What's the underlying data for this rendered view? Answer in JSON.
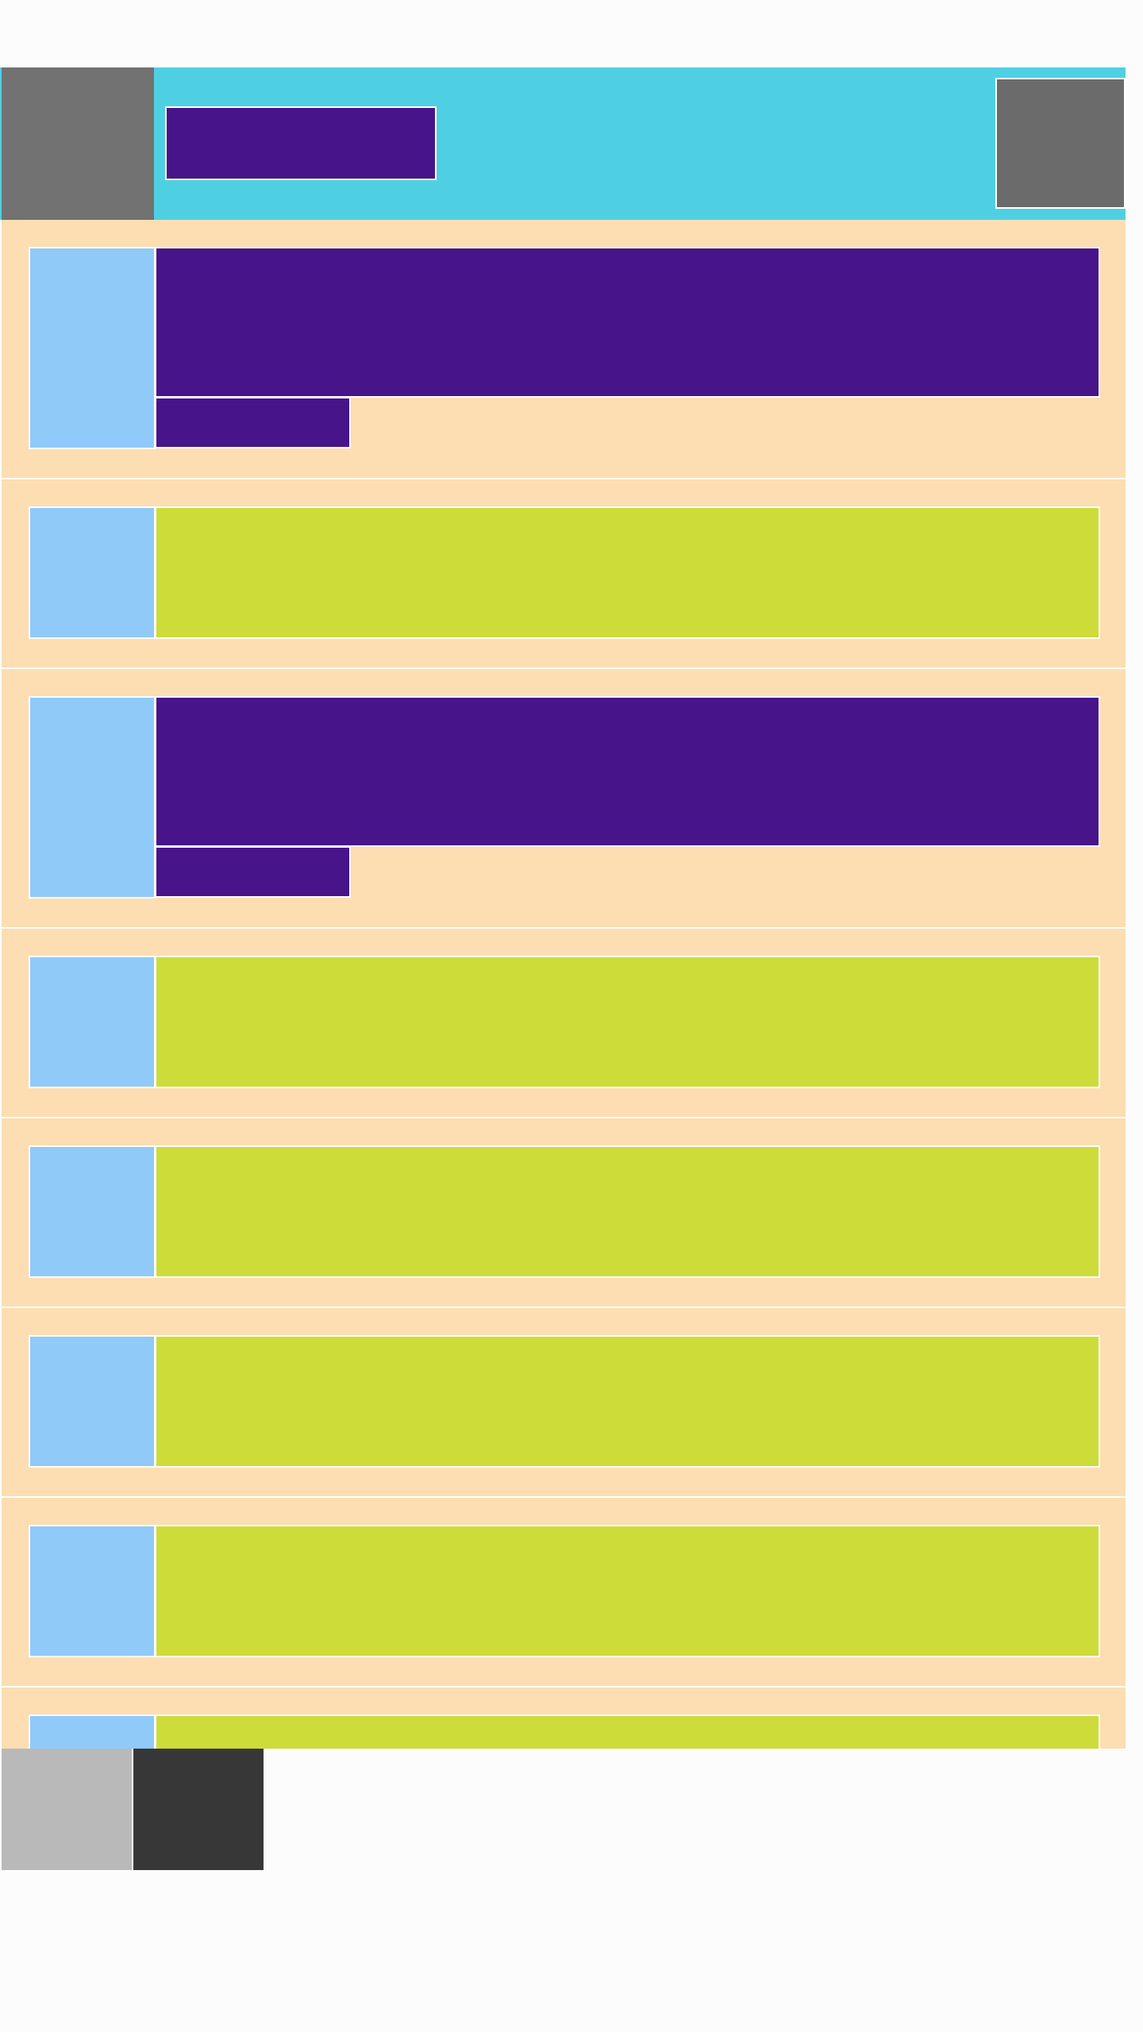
{
  "colors": {
    "app_bar": "#4fd0e2",
    "nav": "#727272",
    "title": "#481489",
    "action": "#6b6b6b",
    "row_bg": "#fcdeb2",
    "thumb": "#90caf9",
    "lime": "#cddc39",
    "purple": "#481489",
    "bottom_left": "#b9b9b9",
    "bottom_right": "#373737",
    "page_bg": "#fcfcfc"
  },
  "list": {
    "rows": [
      {
        "variant": "two-line"
      },
      {
        "variant": "single"
      },
      {
        "variant": "two-line"
      },
      {
        "variant": "single"
      },
      {
        "variant": "single"
      },
      {
        "variant": "single"
      },
      {
        "variant": "single"
      },
      {
        "variant": "single"
      }
    ]
  }
}
